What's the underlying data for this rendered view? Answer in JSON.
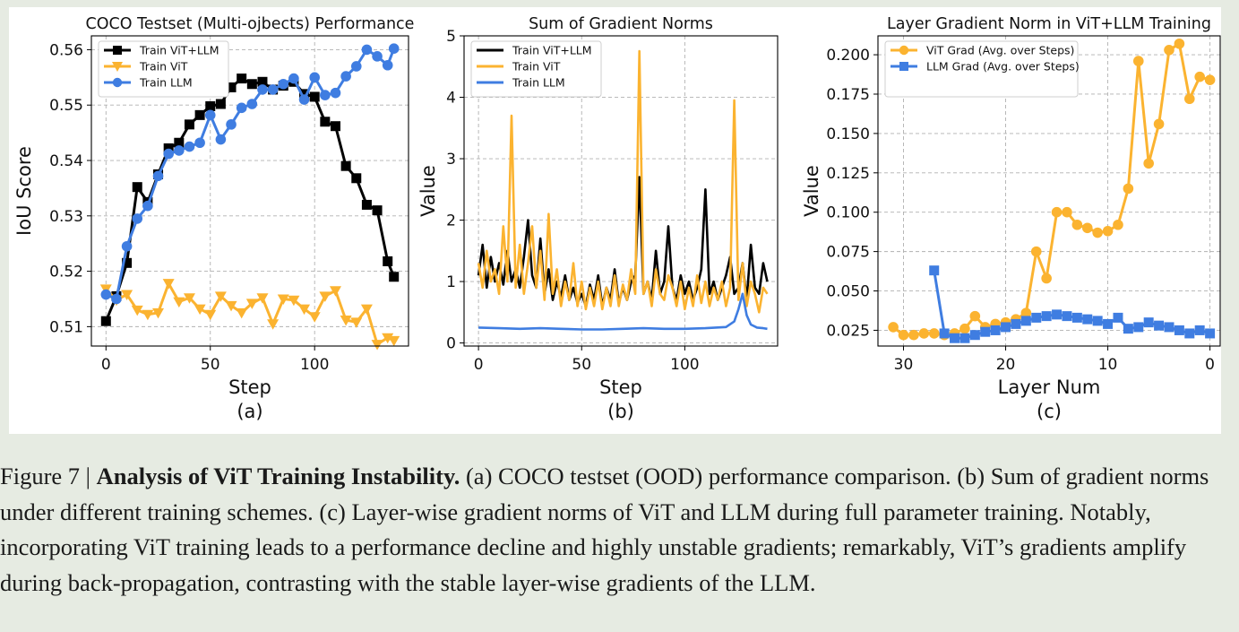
{
  "figure": {
    "panels": [
      {
        "id": "a",
        "sublabel": "(a)",
        "chart_data": {
          "type": "line",
          "title": "COCO Testset (Multi-ojbects) Performance",
          "xlabel": "Step",
          "ylabel": "IoU Score",
          "xlim": [
            -7,
            145
          ],
          "ylim": [
            0.5065,
            0.5625
          ],
          "xticks": [
            0,
            50,
            100
          ],
          "yticks": [
            0.51,
            0.52,
            0.53,
            0.54,
            0.55,
            0.56
          ],
          "ytick_labels": [
            "0.51",
            "0.52",
            "0.53",
            "0.54",
            "0.55",
            "0.56"
          ],
          "grid": true,
          "legend_position": "top-left",
          "series": [
            {
              "name": "Train ViT+LLM",
              "color": "#000000",
              "marker": "square",
              "x": [
                0,
                5,
                10,
                15,
                20,
                25,
                30,
                35,
                40,
                45,
                50,
                55,
                60,
                65,
                70,
                75,
                80,
                85,
                90,
                95,
                100,
                105,
                110,
                115,
                120,
                125,
                130,
                135,
                138
              ],
              "y": [
                0.511,
                0.5155,
                0.5215,
                0.5352,
                0.5325,
                0.5375,
                0.5422,
                0.5432,
                0.5465,
                0.5482,
                0.5498,
                0.5502,
                0.5532,
                0.5548,
                0.5538,
                0.5542,
                0.5528,
                0.5535,
                0.5542,
                0.552,
                0.5515,
                0.547,
                0.5462,
                0.539,
                0.5368,
                0.532,
                0.531,
                0.5218,
                0.519
              ]
            },
            {
              "name": "Train ViT",
              "color": "#fbb330",
              "marker": "triangle-down",
              "x": [
                0,
                5,
                10,
                15,
                20,
                25,
                30,
                35,
                40,
                45,
                50,
                55,
                60,
                65,
                70,
                75,
                80,
                85,
                90,
                95,
                100,
                105,
                110,
                115,
                120,
                125,
                130,
                135,
                138
              ],
              "y": [
                0.5168,
                0.5148,
                0.5158,
                0.513,
                0.5122,
                0.5125,
                0.5178,
                0.5145,
                0.5152,
                0.5132,
                0.5122,
                0.5155,
                0.5138,
                0.5125,
                0.5142,
                0.5152,
                0.5105,
                0.515,
                0.5148,
                0.5132,
                0.5118,
                0.5155,
                0.5165,
                0.5112,
                0.5108,
                0.5132,
                0.5068,
                0.508,
                0.5075
              ]
            },
            {
              "name": "Train LLM",
              "color": "#3f7de1",
              "marker": "circle",
              "x": [
                0,
                5,
                10,
                15,
                20,
                25,
                30,
                35,
                40,
                45,
                50,
                55,
                60,
                65,
                70,
                75,
                80,
                85,
                90,
                95,
                100,
                105,
                110,
                115,
                120,
                125,
                130,
                135,
                138
              ],
              "y": [
                0.5158,
                0.515,
                0.5245,
                0.5295,
                0.5318,
                0.5372,
                0.5412,
                0.5418,
                0.5425,
                0.5432,
                0.5482,
                0.5438,
                0.5465,
                0.5495,
                0.5502,
                0.5528,
                0.5528,
                0.5538,
                0.5548,
                0.551,
                0.555,
                0.5518,
                0.5522,
                0.5552,
                0.557,
                0.56,
                0.5588,
                0.5572,
                0.5602
              ]
            }
          ]
        }
      },
      {
        "id": "b",
        "sublabel": "(b)",
        "chart_data": {
          "type": "line",
          "title": "Sum of Gradient Norms",
          "xlabel": "Step",
          "ylabel": "Value",
          "xlim": [
            -7,
            145
          ],
          "ylim": [
            -0.05,
            5.0
          ],
          "xticks": [
            0,
            50,
            100
          ],
          "yticks": [
            0,
            1,
            2,
            3,
            4,
            5
          ],
          "ytick_labels": [
            "0",
            "1",
            "2",
            "3",
            "4",
            "5"
          ],
          "grid": true,
          "legend_position": "top-left",
          "series": [
            {
              "name": "Train ViT+LLM",
              "color": "#000000",
              "x": [
                0,
                2,
                4,
                6,
                8,
                10,
                12,
                14,
                16,
                18,
                20,
                22,
                24,
                26,
                28,
                30,
                32,
                34,
                36,
                38,
                40,
                42,
                44,
                46,
                48,
                50,
                52,
                54,
                56,
                58,
                60,
                62,
                64,
                66,
                68,
                70,
                72,
                74,
                76,
                78,
                80,
                82,
                84,
                86,
                88,
                90,
                92,
                94,
                96,
                98,
                100,
                102,
                104,
                106,
                108,
                110,
                112,
                114,
                116,
                118,
                120,
                122,
                124,
                126,
                128,
                130,
                132,
                134,
                136,
                138,
                140
              ],
              "y": [
                1.1,
                1.6,
                0.9,
                1.4,
                1.0,
                1.3,
                0.95,
                1.5,
                1.0,
                1.2,
                0.9,
                1.4,
                2.0,
                1.1,
                0.9,
                1.7,
                0.8,
                1.2,
                0.7,
                1.0,
                0.75,
                1.1,
                0.7,
                0.9,
                0.65,
                0.8,
                0.6,
                0.95,
                0.7,
                1.1,
                0.6,
                0.9,
                0.7,
                1.2,
                0.65,
                0.9,
                0.7,
                1.0,
                1.1,
                2.7,
                0.8,
                1.0,
                0.7,
                1.5,
                0.8,
                1.0,
                1.9,
                0.9,
                0.7,
                1.1,
                0.8,
                1.0,
                0.7,
                0.9,
                1.2,
                2.5,
                0.8,
                1.0,
                0.7,
                0.9,
                1.1,
                1.4,
                0.8,
                0.9,
                1.3,
                0.7,
                1.6,
                0.9,
                0.8,
                1.3,
                1.0
              ]
            },
            {
              "name": "Train ViT",
              "color": "#fbb330",
              "x": [
                0,
                2,
                4,
                6,
                8,
                10,
                12,
                14,
                16,
                18,
                20,
                22,
                24,
                26,
                28,
                30,
                32,
                34,
                36,
                38,
                40,
                42,
                44,
                46,
                48,
                50,
                52,
                54,
                56,
                58,
                60,
                62,
                64,
                66,
                68,
                70,
                72,
                74,
                76,
                78,
                80,
                82,
                84,
                86,
                88,
                90,
                92,
                94,
                96,
                98,
                100,
                102,
                104,
                106,
                108,
                110,
                112,
                114,
                116,
                118,
                120,
                122,
                124,
                126,
                128,
                130,
                132,
                134,
                136,
                138,
                140
              ],
              "y": [
                1.3,
                0.9,
                1.5,
                1.0,
                1.2,
                0.8,
                1.9,
                1.0,
                3.7,
                0.9,
                1.6,
                0.8,
                1.3,
                1.9,
                0.9,
                1.5,
                0.7,
                2.1,
                0.8,
                1.2,
                0.6,
                1.0,
                0.7,
                1.3,
                0.6,
                1.0,
                0.55,
                0.9,
                0.6,
                1.0,
                0.55,
                0.9,
                0.6,
                1.1,
                0.6,
                0.95,
                0.7,
                1.2,
                0.8,
                4.75,
                0.8,
                1.0,
                0.6,
                1.2,
                0.8,
                0.7,
                1.1,
                0.9,
                0.6,
                1.0,
                0.55,
                0.9,
                0.6,
                1.1,
                0.65,
                1.0,
                0.6,
                0.9,
                0.7,
                1.0,
                0.6,
                0.9,
                3.95,
                0.7,
                1.3,
                0.6,
                1.0,
                0.8,
                0.5,
                0.9,
                0.8
              ]
            },
            {
              "name": "Train LLM",
              "color": "#3f7de1",
              "x": [
                0,
                10,
                20,
                30,
                40,
                50,
                60,
                70,
                80,
                90,
                100,
                110,
                115,
                120,
                124,
                126,
                128,
                130,
                132,
                135,
                138,
                140
              ],
              "y": [
                0.25,
                0.24,
                0.23,
                0.24,
                0.23,
                0.22,
                0.22,
                0.23,
                0.24,
                0.23,
                0.23,
                0.24,
                0.25,
                0.26,
                0.35,
                0.55,
                0.8,
                0.45,
                0.3,
                0.25,
                0.24,
                0.23
              ]
            }
          ]
        }
      },
      {
        "id": "c",
        "sublabel": "(c)",
        "chart_data": {
          "type": "line",
          "title": "Layer Gradient Norm in ViT+LLM Training",
          "xlabel": "Layer Num",
          "ylabel": "Value",
          "xlim": [
            32.5,
            -1
          ],
          "ylim": [
            0.015,
            0.212
          ],
          "xticks": [
            30,
            20,
            10,
            0
          ],
          "yticks": [
            0.025,
            0.05,
            0.075,
            0.1,
            0.125,
            0.15,
            0.175,
            0.2
          ],
          "ytick_labels": [
            "0.025",
            "0.050",
            "0.075",
            "0.100",
            "0.125",
            "0.150",
            "0.175",
            "0.200"
          ],
          "grid": true,
          "legend_position": "top-left",
          "series": [
            {
              "name": "ViT Grad (Avg. over Steps)",
              "color": "#fbb330",
              "marker": "circle",
              "x": [
                31,
                30,
                29,
                28,
                27,
                26,
                25,
                24,
                23,
                22,
                21,
                20,
                19,
                18,
                17,
                16,
                15,
                14,
                13,
                12,
                11,
                10,
                9,
                8,
                7,
                6,
                5,
                4,
                3,
                2,
                1,
                0
              ],
              "y": [
                0.027,
                0.022,
                0.022,
                0.023,
                0.023,
                0.022,
                0.023,
                0.026,
                0.034,
                0.027,
                0.029,
                0.03,
                0.032,
                0.036,
                0.075,
                0.058,
                0.1,
                0.1,
                0.092,
                0.09,
                0.087,
                0.088,
                0.092,
                0.115,
                0.196,
                0.131,
                0.156,
                0.203,
                0.207,
                0.172,
                0.186,
                0.184
              ]
            },
            {
              "name": "LLM Grad (Avg. over Steps)",
              "color": "#3f7de1",
              "marker": "square",
              "x": [
                27,
                26,
                25,
                24,
                23,
                22,
                21,
                20,
                19,
                18,
                17,
                16,
                15,
                14,
                13,
                12,
                11,
                10,
                9,
                8,
                7,
                6,
                5,
                4,
                3,
                2,
                1,
                0
              ],
              "y": [
                0.063,
                0.023,
                0.02,
                0.02,
                0.022,
                0.024,
                0.025,
                0.027,
                0.029,
                0.031,
                0.033,
                0.034,
                0.035,
                0.034,
                0.033,
                0.032,
                0.031,
                0.029,
                0.033,
                0.026,
                0.027,
                0.03,
                0.028,
                0.027,
                0.025,
                0.023,
                0.025,
                0.023
              ]
            }
          ]
        }
      }
    ]
  },
  "caption": {
    "label": "Figure 7 | ",
    "title": "Analysis of ViT Training Instability.",
    "body": " (a) COCO testset (OOD) performance comparison. (b) Sum of gradient norms under different training schemes. (c) Layer-wise gradient norms of ViT and LLM during full parameter training. Notably, incorporating ViT training leads to a performance decline and highly unstable gradients; remarkably, ViT’s gradients amplify during back-propagation, contrasting with the stable layer-wise gradients of the LLM."
  }
}
